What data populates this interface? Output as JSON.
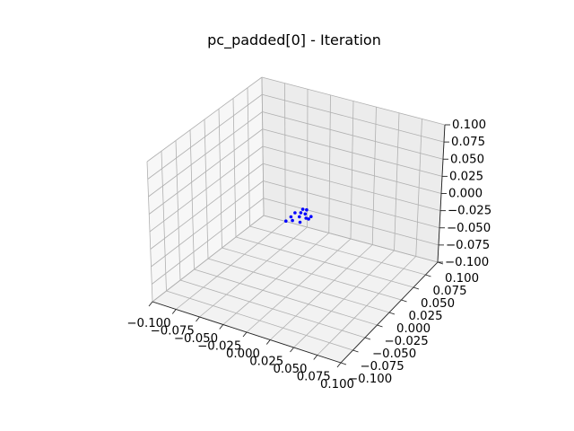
{
  "chart_data": {
    "type": "scatter3d",
    "title": "pc_padded[0] - Iteration",
    "xlabel": "",
    "ylabel": "",
    "zlabel": "",
    "xlim": [
      -0.1,
      0.1
    ],
    "ylim": [
      -0.1,
      0.1
    ],
    "zlim": [
      -0.1,
      0.1
    ],
    "grid": true,
    "x_ticks": [
      "−0.100",
      "−0.075",
      "−0.050",
      "−0.025",
      "0.000",
      "0.025",
      "0.050",
      "0.075",
      "0.100"
    ],
    "y_ticks": [
      "−0.100",
      "−0.075",
      "−0.050",
      "−0.025",
      "0.000",
      "0.025",
      "0.050",
      "0.075",
      "0.100"
    ],
    "z_ticks": [
      "−0.100",
      "−0.075",
      "−0.050",
      "−0.025",
      "0.000",
      "0.025",
      "0.050",
      "0.075",
      "0.100"
    ],
    "point_color": "#0000ff",
    "points": [
      {
        "x": -0.006,
        "y": 0.004,
        "z": 0.002
      },
      {
        "x": -0.002,
        "y": 0.008,
        "z": 0.001
      },
      {
        "x": 0.004,
        "y": 0.006,
        "z": 0.003
      },
      {
        "x": 0.002,
        "y": 0.012,
        "z": 0.004
      },
      {
        "x": -0.008,
        "y": 0.0,
        "z": -0.002
      },
      {
        "x": 0.0,
        "y": 0.002,
        "z": 0.0
      },
      {
        "x": 0.006,
        "y": 0.004,
        "z": -0.001
      },
      {
        "x": -0.004,
        "y": -0.004,
        "z": -0.003
      },
      {
        "x": 0.003,
        "y": -0.002,
        "z": -0.004
      },
      {
        "x": -0.01,
        "y": -0.006,
        "z": -0.005
      },
      {
        "x": 0.008,
        "y": 0.01,
        "z": -0.002
      },
      {
        "x": -0.001,
        "y": 0.01,
        "z": 0.005
      },
      {
        "x": 0.01,
        "y": 0.002,
        "z": 0.001
      }
    ]
  }
}
